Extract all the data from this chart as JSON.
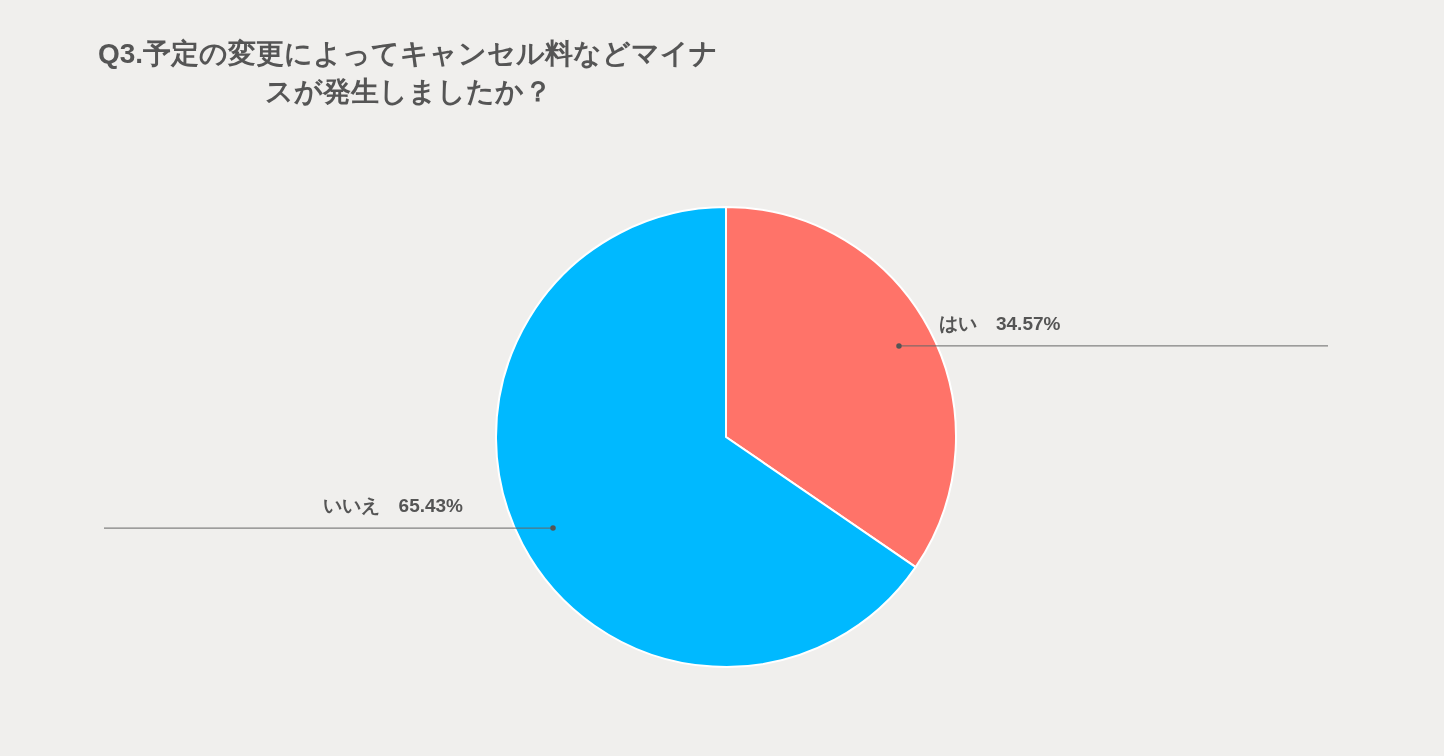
{
  "chart_data": {
    "type": "pie",
    "title": "Q3.予定の変更によってキャンセル料などマイナスが発生しましたか？",
    "categories": [
      "はい",
      "いいえ"
    ],
    "values": [
      34.57,
      65.43
    ],
    "value_labels": [
      "34.57%",
      "65.43%"
    ],
    "colors": [
      "#ff7369",
      "#00b9ff"
    ]
  }
}
